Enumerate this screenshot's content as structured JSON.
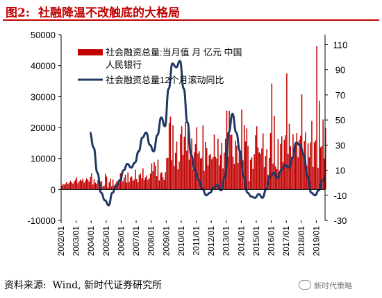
{
  "figure": {
    "title": "图2:  社融降温不改触底的大格局",
    "source": "资料来源:  Wind, 新时代证券研究所",
    "watermark": "新时代策略",
    "watermark_icon": "wechat-icon"
  },
  "colors": {
    "bar": "#c00000",
    "line": "#1f3864",
    "title": "#c00000"
  },
  "chart_data": {
    "type": "bar+line",
    "grid": false,
    "legend_position": "top-left",
    "x_tick_labels": [
      "2002/01",
      "2003/01",
      "2004/01",
      "2005/01",
      "2006/01",
      "2007/01",
      "2008/01",
      "2009/01",
      "2010/01",
      "2011/01",
      "2012/01",
      "2013/01",
      "2014/01",
      "2015/01",
      "2016/01",
      "2017/01",
      "2018/01",
      "2019/01"
    ],
    "y_left": {
      "ticks": [
        "50000",
        "40000",
        "30000",
        "20000",
        "10000",
        "0",
        "-10000"
      ],
      "ylim": [
        -10000,
        50000
      ]
    },
    "y_right": {
      "ticks": [
        "110",
        "90",
        "70",
        "50",
        "30",
        "10",
        "-10",
        "-30"
      ],
      "ylim": [
        -30,
        118
      ]
    },
    "bar_series": {
      "name": "社会融资总量:当月值  月  亿元  中国人民银行",
      "legend_lines": [
        "社会融资总量:当月值  月  亿元  中国",
        "人民银行"
      ],
      "axis": "left",
      "x_start": "2002/01",
      "monthly_values": [
        1200,
        1800,
        1500,
        1900,
        2400,
        1700,
        2100,
        2800,
        2300,
        1900,
        2600,
        3100,
        3900,
        2000,
        2700,
        3200,
        2800,
        3500,
        2200,
        2900,
        3600,
        3100,
        2500,
        4100,
        5200,
        1600,
        3300,
        2200,
        1800,
        3000,
        1100,
        2400,
        2700,
        900,
        1300,
        5100,
        4200,
        600,
        2300,
        3500,
        1000,
        3200,
        1300,
        1800,
        2600,
        1600,
        2200,
        5200,
        4600,
        2600,
        3800,
        4800,
        2200,
        5500,
        2400,
        3900,
        4200,
        2800,
        3200,
        6400,
        3400,
        2300,
        4700,
        5100,
        3600,
        6800,
        3000,
        3900,
        4500,
        3100,
        3600,
        5100,
        8400,
        5900,
        8800,
        7700,
        4300,
        9600,
        2900,
        5200,
        5600,
        4000,
        3000,
        5600,
        10100,
        10200,
        21400,
        23500,
        9400,
        20700,
        7600,
        11800,
        15500,
        6500,
        9000,
        17800,
        20400,
        11100,
        17000,
        21800,
        12500,
        20600,
        9600,
        11200,
        16500,
        6500,
        12000,
        14600,
        20100,
        11600,
        12300,
        10000,
        10200,
        20700,
        6000,
        15300,
        13300,
        7800,
        11000,
        11500,
        9800,
        10400,
        17700,
        10600,
        10000,
        16400,
        7800,
        11200,
        15100,
        6800,
        11900,
        16400,
        25500,
        10700,
        25400,
        17600,
        17700,
        10600,
        8200,
        15800,
        14100,
        8600,
        12300,
        12400,
        25800,
        9400,
        20800,
        15500,
        19700,
        14000,
        2700,
        9600,
        10400,
        6600,
        11400,
        17500,
        20400,
        13600,
        12000,
        11500,
        13200,
        18100,
        7200,
        10800,
        13000,
        4800,
        10200,
        18200,
        34200,
        8300,
        23800,
        7500,
        6600,
        16300,
        4900,
        14700,
        17200,
        8800,
        16000,
        17500,
        37500,
        11500,
        21200,
        13900,
        10600,
        17800,
        12200,
        14900,
        18200,
        10400,
        16000,
        17400,
        30700,
        11700,
        15600,
        18500,
        7600,
        14900,
        10400,
        15200,
        22100,
        7300,
        15200,
        15900,
        46400,
        7000,
        28600,
        13600,
        14000,
        22600,
        10000,
        19800
      ]
    },
    "line_series": {
      "name": "社会融资总量12个月滚动同比",
      "axis": "right",
      "points": [
        [
          "2003/12",
          40
        ],
        [
          "2004/03",
          28
        ],
        [
          "2004/06",
          8
        ],
        [
          "2004/09",
          -8
        ],
        [
          "2004/12",
          -14
        ],
        [
          "2005/03",
          -18
        ],
        [
          "2005/06",
          -8
        ],
        [
          "2005/09",
          -3
        ],
        [
          "2005/12",
          2
        ],
        [
          "2006/03",
          10
        ],
        [
          "2006/06",
          15
        ],
        [
          "2006/09",
          12
        ],
        [
          "2006/12",
          16
        ],
        [
          "2007/03",
          25
        ],
        [
          "2007/06",
          36
        ],
        [
          "2007/09",
          40
        ],
        [
          "2007/12",
          30
        ],
        [
          "2008/03",
          25
        ],
        [
          "2008/06",
          38
        ],
        [
          "2008/09",
          52
        ],
        [
          "2008/12",
          45
        ],
        [
          "2009/03",
          75
        ],
        [
          "2009/06",
          95
        ],
        [
          "2009/09",
          92
        ],
        [
          "2009/12",
          97
        ],
        [
          "2010/03",
          75
        ],
        [
          "2010/06",
          48
        ],
        [
          "2010/09",
          22
        ],
        [
          "2010/12",
          10
        ],
        [
          "2011/03",
          2
        ],
        [
          "2011/06",
          -5
        ],
        [
          "2011/09",
          -10
        ],
        [
          "2011/12",
          -8
        ],
        [
          "2012/03",
          -4
        ],
        [
          "2012/06",
          -2
        ],
        [
          "2012/09",
          -6
        ],
        [
          "2012/12",
          5
        ],
        [
          "2013/03",
          40
        ],
        [
          "2013/06",
          55
        ],
        [
          "2013/09",
          40
        ],
        [
          "2013/12",
          25
        ],
        [
          "2014/03",
          5
        ],
        [
          "2014/06",
          -8
        ],
        [
          "2014/09",
          -11
        ],
        [
          "2014/12",
          -12
        ],
        [
          "2015/03",
          -9
        ],
        [
          "2015/06",
          -12
        ],
        [
          "2015/09",
          -5
        ],
        [
          "2015/12",
          5
        ],
        [
          "2016/03",
          8
        ],
        [
          "2016/06",
          4
        ],
        [
          "2016/09",
          10
        ],
        [
          "2016/12",
          14
        ],
        [
          "2017/03",
          12
        ],
        [
          "2017/06",
          20
        ],
        [
          "2017/09",
          32
        ],
        [
          "2017/12",
          30
        ],
        [
          "2018/03",
          22
        ],
        [
          "2018/06",
          5
        ],
        [
          "2018/09",
          -8
        ],
        [
          "2018/12",
          -10
        ],
        [
          "2019/03",
          -6
        ],
        [
          "2019/06",
          2
        ],
        [
          "2019/08",
          4
        ]
      ]
    }
  }
}
